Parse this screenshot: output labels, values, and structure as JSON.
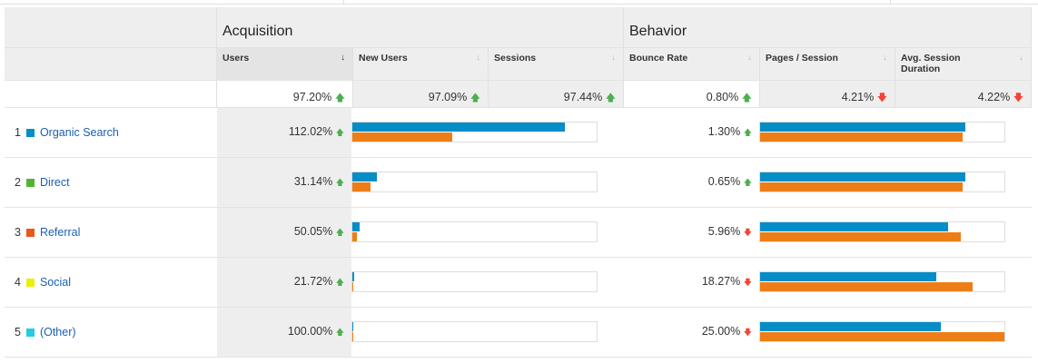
{
  "groups": {
    "acquisition": "Acquisition",
    "behavior": "Behavior"
  },
  "columns": [
    {
      "label": "Users",
      "sorted": true
    },
    {
      "label": "New Users"
    },
    {
      "label": "Sessions"
    },
    {
      "label": "Bounce Rate"
    },
    {
      "label": "Pages / Session"
    },
    {
      "label": "Avg. Session Duration"
    }
  ],
  "totals": [
    {
      "value": "97.20%",
      "trend": "up"
    },
    {
      "value": "97.09%",
      "trend": "up"
    },
    {
      "value": "97.44%",
      "trend": "up"
    },
    {
      "value": "0.80%",
      "trend": "up"
    },
    {
      "value": "4.21%",
      "trend": "down"
    },
    {
      "value": "4.22%",
      "trend": "down"
    }
  ],
  "colors": {
    "blue": "#058dc7",
    "orange": "#ed7e17",
    "up": "#4caf50",
    "down": "#f44336"
  },
  "rows": [
    {
      "index": "1",
      "label": "Organic Search",
      "color": "#058dc7",
      "users": "112.02%",
      "users_trend": "up",
      "acq_bar": [
        0.87,
        0.41
      ],
      "bounce": "1.30%",
      "bounce_trend": "up",
      "beh_bar": [
        0.84,
        0.83
      ]
    },
    {
      "index": "2",
      "label": "Direct",
      "color": "#50b432",
      "users": "31.14%",
      "users_trend": "up",
      "acq_bar": [
        0.1,
        0.074
      ],
      "bounce": "0.65%",
      "bounce_trend": "up",
      "beh_bar": [
        0.84,
        0.83
      ]
    },
    {
      "index": "3",
      "label": "Referral",
      "color": "#ed561b",
      "users": "50.05%",
      "users_trend": "up",
      "acq_bar": [
        0.03,
        0.02
      ],
      "bounce": "5.96%",
      "bounce_trend": "down",
      "beh_bar": [
        0.77,
        0.82
      ]
    },
    {
      "index": "4",
      "label": "Social",
      "color": "#edef00",
      "users": "21.72%",
      "users_trend": "up",
      "acq_bar": [
        0.007,
        0.004
      ],
      "bounce": "18.27%",
      "bounce_trend": "down",
      "beh_bar": [
        0.72,
        0.87
      ]
    },
    {
      "index": "5",
      "label": "(Other)",
      "color": "#24cbe5",
      "users": "100.00%",
      "users_trend": "up",
      "acq_bar": [
        0.004,
        0.003
      ],
      "bounce": "25.00%",
      "bounce_trend": "down",
      "beh_bar": [
        0.74,
        1.0
      ]
    }
  ]
}
